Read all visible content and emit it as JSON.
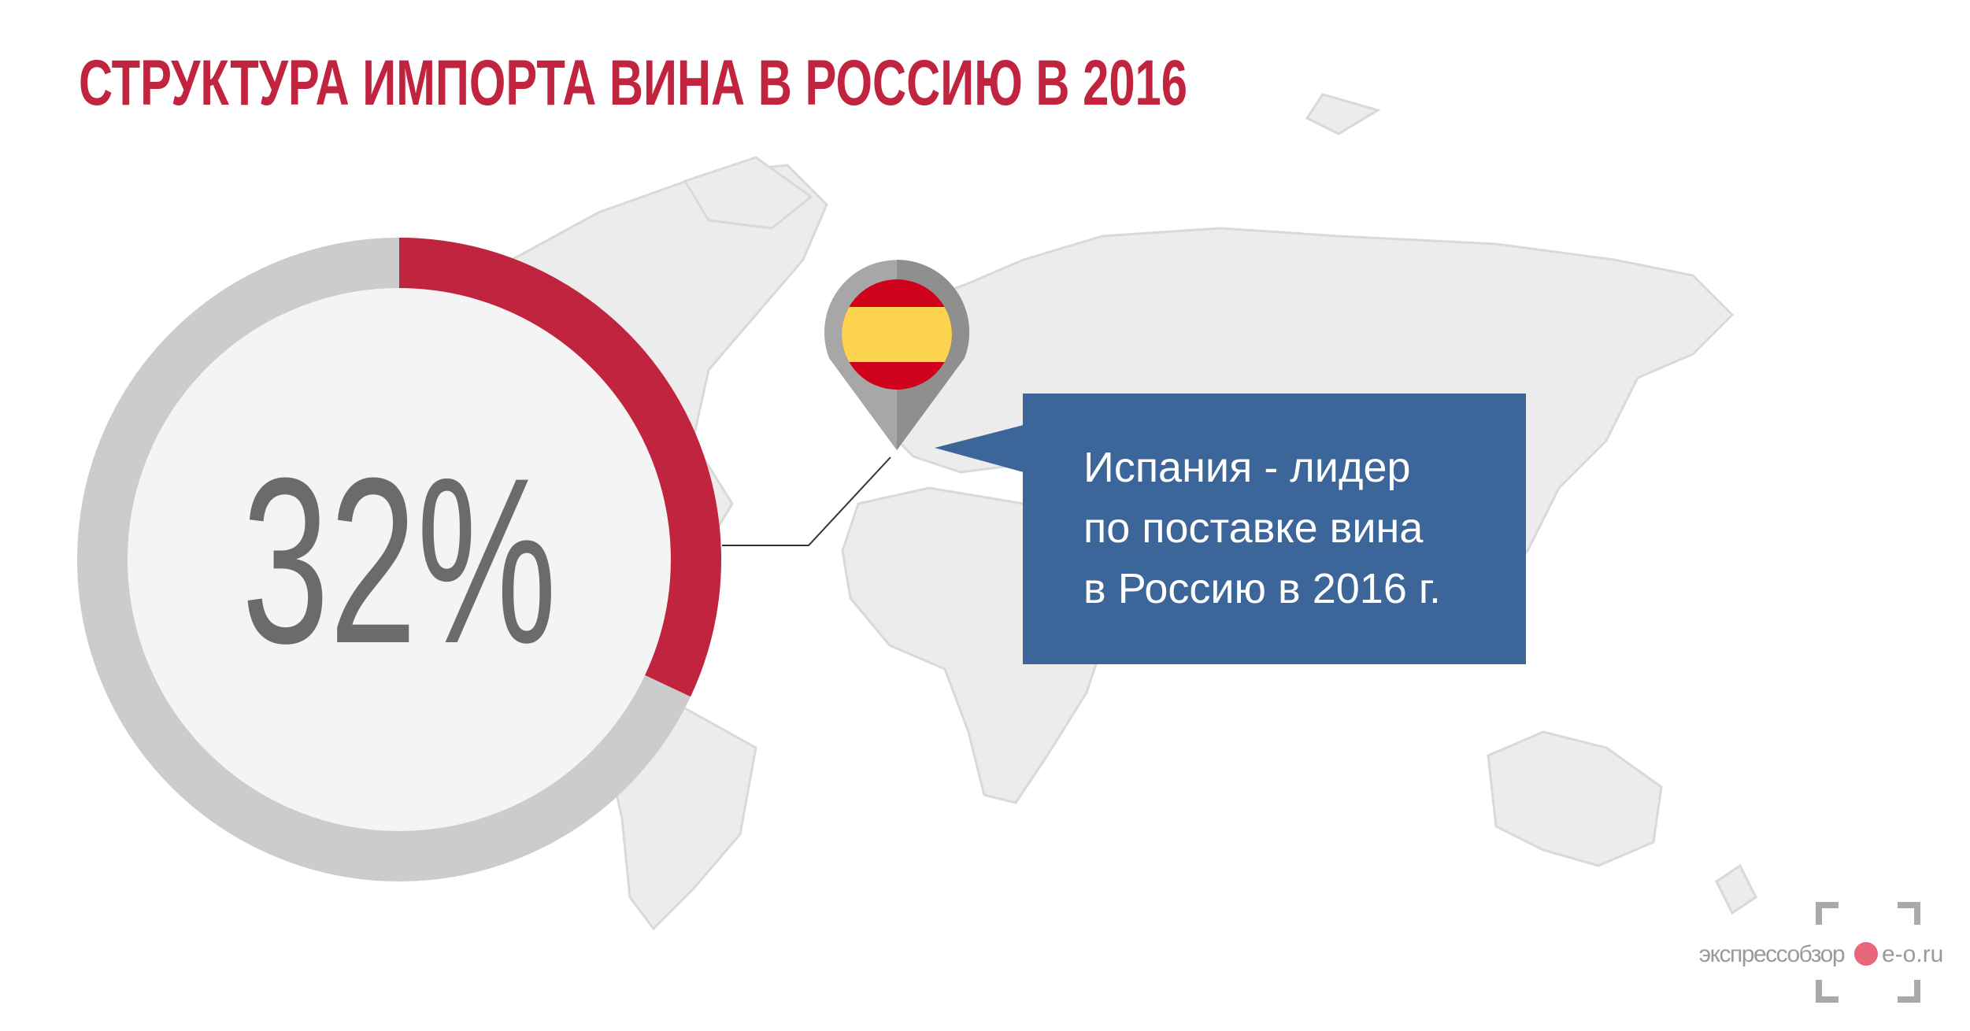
{
  "chart_data": {
    "type": "donut",
    "title": "СТРУКТУРА ИМПОРТА ВИНА В РОССИЮ В 2016",
    "values": [
      32
    ],
    "value_labels": [
      "32%"
    ],
    "ylim": [
      0,
      100
    ],
    "color": "#c0243e",
    "track_color": "#cccccc"
  },
  "callout": {
    "lines": [
      "Испания - лидер",
      "по поставке вина",
      "в Россию в 2016 г."
    ]
  },
  "watermark": {
    "brand": "экспрессобзор",
    "domain": "e-o.ru"
  }
}
